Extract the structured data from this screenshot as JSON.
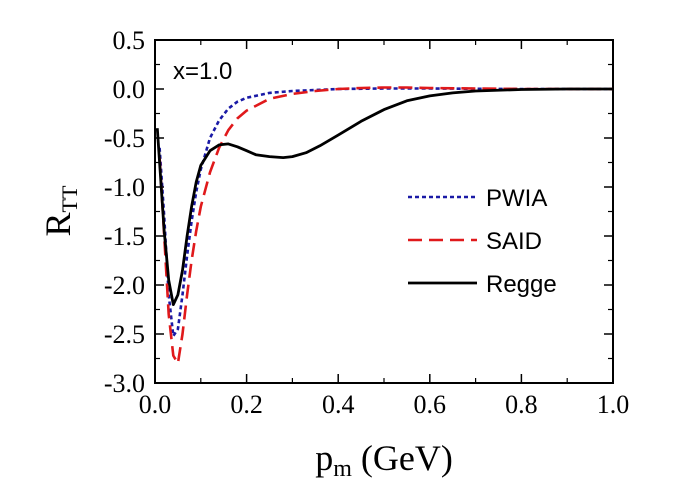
{
  "chart_data": {
    "type": "line",
    "annotation": "x=1.0",
    "xlabel": "p",
    "xlabel_sub": "m",
    "xlabel_rest": " (GeV)",
    "ylabel": "R",
    "ylabel_sub": "TT",
    "xlim": [
      0.0,
      1.0
    ],
    "ylim": [
      -3.0,
      0.5
    ],
    "xticks": [
      0.0,
      0.2,
      0.4,
      0.6,
      0.8,
      1.0
    ],
    "xtick_labels": [
      "0.0",
      "0.2",
      "0.4",
      "0.6",
      "0.8",
      "1.0"
    ],
    "yticks": [
      0.5,
      0.0,
      -0.5,
      -1.0,
      -1.5,
      -2.0,
      -2.5,
      -3.0
    ],
    "ytick_labels": [
      "0.5",
      "0.0",
      "-0.5",
      "-1.0",
      "-1.5",
      "-2.0",
      "-2.5",
      "-3.0"
    ],
    "legend_position": "right",
    "series": [
      {
        "name": "PWIA",
        "color": "#1a1aa6",
        "dash": "dotted",
        "points": [
          [
            0.01,
            -0.6
          ],
          [
            0.02,
            -1.3
          ],
          [
            0.03,
            -2.1
          ],
          [
            0.04,
            -2.52
          ],
          [
            0.05,
            -2.45
          ],
          [
            0.06,
            -2.1
          ],
          [
            0.07,
            -1.7
          ],
          [
            0.08,
            -1.35
          ],
          [
            0.09,
            -1.05
          ],
          [
            0.1,
            -0.82
          ],
          [
            0.12,
            -0.5
          ],
          [
            0.14,
            -0.32
          ],
          [
            0.16,
            -0.2
          ],
          [
            0.18,
            -0.13
          ],
          [
            0.2,
            -0.09
          ],
          [
            0.25,
            -0.04
          ],
          [
            0.3,
            -0.02
          ],
          [
            0.35,
            -0.01
          ],
          [
            0.4,
            0.0
          ],
          [
            0.5,
            0.005
          ],
          [
            0.6,
            0.005
          ],
          [
            0.8,
            0.0
          ],
          [
            1.0,
            0.0
          ]
        ]
      },
      {
        "name": "SAID",
        "color": "#e0191b",
        "dash": "dashed",
        "points": [
          [
            0.01,
            -0.7
          ],
          [
            0.02,
            -1.5
          ],
          [
            0.03,
            -2.3
          ],
          [
            0.04,
            -2.72
          ],
          [
            0.05,
            -2.8
          ],
          [
            0.06,
            -2.5
          ],
          [
            0.07,
            -2.1
          ],
          [
            0.08,
            -1.75
          ],
          [
            0.09,
            -1.45
          ],
          [
            0.1,
            -1.2
          ],
          [
            0.12,
            -0.85
          ],
          [
            0.14,
            -0.6
          ],
          [
            0.16,
            -0.42
          ],
          [
            0.18,
            -0.3
          ],
          [
            0.2,
            -0.22
          ],
          [
            0.25,
            -0.1
          ],
          [
            0.3,
            -0.05
          ],
          [
            0.35,
            -0.02
          ],
          [
            0.4,
            0.0
          ],
          [
            0.45,
            0.01
          ],
          [
            0.5,
            0.015
          ],
          [
            0.55,
            0.015
          ],
          [
            0.6,
            0.01
          ],
          [
            0.7,
            0.005
          ],
          [
            0.8,
            0.0
          ],
          [
            1.0,
            0.0
          ]
        ]
      },
      {
        "name": "Regge",
        "color": "#000000",
        "dash": "solid",
        "points": [
          [
            0.005,
            -0.4
          ],
          [
            0.01,
            -0.75
          ],
          [
            0.02,
            -1.45
          ],
          [
            0.03,
            -1.95
          ],
          [
            0.04,
            -2.2
          ],
          [
            0.05,
            -2.1
          ],
          [
            0.06,
            -1.85
          ],
          [
            0.07,
            -1.5
          ],
          [
            0.08,
            -1.2
          ],
          [
            0.09,
            -0.95
          ],
          [
            0.1,
            -0.78
          ],
          [
            0.12,
            -0.63
          ],
          [
            0.14,
            -0.57
          ],
          [
            0.16,
            -0.56
          ],
          [
            0.18,
            -0.59
          ],
          [
            0.2,
            -0.63
          ],
          [
            0.22,
            -0.67
          ],
          [
            0.25,
            -0.69
          ],
          [
            0.28,
            -0.7
          ],
          [
            0.3,
            -0.69
          ],
          [
            0.33,
            -0.65
          ],
          [
            0.36,
            -0.58
          ],
          [
            0.4,
            -0.47
          ],
          [
            0.45,
            -0.33
          ],
          [
            0.5,
            -0.21
          ],
          [
            0.55,
            -0.12
          ],
          [
            0.6,
            -0.07
          ],
          [
            0.65,
            -0.04
          ],
          [
            0.7,
            -0.02
          ],
          [
            0.8,
            -0.005
          ],
          [
            0.9,
            0.0
          ],
          [
            1.0,
            0.0
          ]
        ]
      }
    ]
  }
}
